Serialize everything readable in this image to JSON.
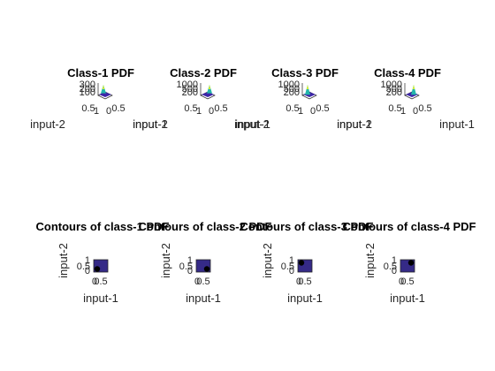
{
  "figure": {
    "background": "#ffffff"
  },
  "chart_data": [
    {
      "type": "surface",
      "title": "Class-1 PDF",
      "xlabel": "input-1",
      "ylabel": "input-2",
      "zticks": [
        "300",
        "200",
        "100"
      ],
      "xticks": [
        "0.5",
        "1"
      ],
      "yticks": [
        "0",
        "0.5"
      ]
    },
    {
      "type": "surface",
      "title": "Class-2 PDF",
      "xlabel": "input-1",
      "ylabel": "input-2",
      "zticks": [
        "1000",
        "500",
        "200"
      ],
      "xticks": [
        "0.5",
        "1"
      ],
      "yticks": [
        "0",
        "0.5"
      ]
    },
    {
      "type": "surface",
      "title": "Class-3 PDF",
      "xlabel": "input-1",
      "ylabel": "input-2",
      "zticks": [
        "1000",
        "500",
        "200"
      ],
      "xticks": [
        "0.5",
        "1"
      ],
      "yticks": [
        "0",
        "0.5"
      ]
    },
    {
      "type": "surface",
      "title": "Class-4 PDF",
      "xlabel": "input-1",
      "ylabel": "input-2",
      "zticks": [
        "1000",
        "500",
        "200"
      ],
      "xticks": [
        "0.5",
        "1"
      ],
      "yticks": [
        "0",
        "0.5"
      ]
    },
    {
      "type": "contour",
      "title": "Contours of class-1 PDF",
      "xlabel": "input-1",
      "ylabel": "input-2",
      "xlim": [
        0,
        1
      ],
      "ylim": [
        0,
        1
      ],
      "xticks": [
        "0",
        "0.5"
      ],
      "yticks": [
        "0",
        "0.5",
        "1"
      ],
      "peak": [
        0.25,
        0.25
      ]
    },
    {
      "type": "contour",
      "title": "Contours of class-2 PDF",
      "xlabel": "input-1",
      "ylabel": "input-2",
      "xlim": [
        0,
        1
      ],
      "ylim": [
        0,
        1
      ],
      "xticks": [
        "0",
        "0.5"
      ],
      "yticks": [
        "0",
        "0.5",
        "1"
      ],
      "peak": [
        0.75,
        0.25
      ]
    },
    {
      "type": "contour",
      "title": "Contours of class-3 PDF",
      "xlabel": "input-1",
      "ylabel": "input-2",
      "xlim": [
        0,
        1
      ],
      "ylim": [
        0,
        1
      ],
      "xticks": [
        "0",
        "0.5"
      ],
      "yticks": [
        "0",
        "0.5",
        "1"
      ],
      "peak": [
        0.25,
        0.75
      ]
    },
    {
      "type": "contour",
      "title": "Contours of class-4 PDF",
      "xlabel": "input-1",
      "ylabel": "input-2",
      "xlim": [
        0,
        1
      ],
      "ylim": [
        0,
        1
      ],
      "xticks": [
        "0",
        "0.5"
      ],
      "yticks": [
        "0",
        "0.5",
        "1"
      ],
      "peak": [
        0.75,
        0.75
      ]
    }
  ],
  "colors": {
    "surface_low": "#3e26a8",
    "surface_mid": "#23b6aa",
    "surface_high": "#f9fb15",
    "contour_fill": "#352a87",
    "contour_peak": "#000000",
    "axis": "#262626"
  }
}
